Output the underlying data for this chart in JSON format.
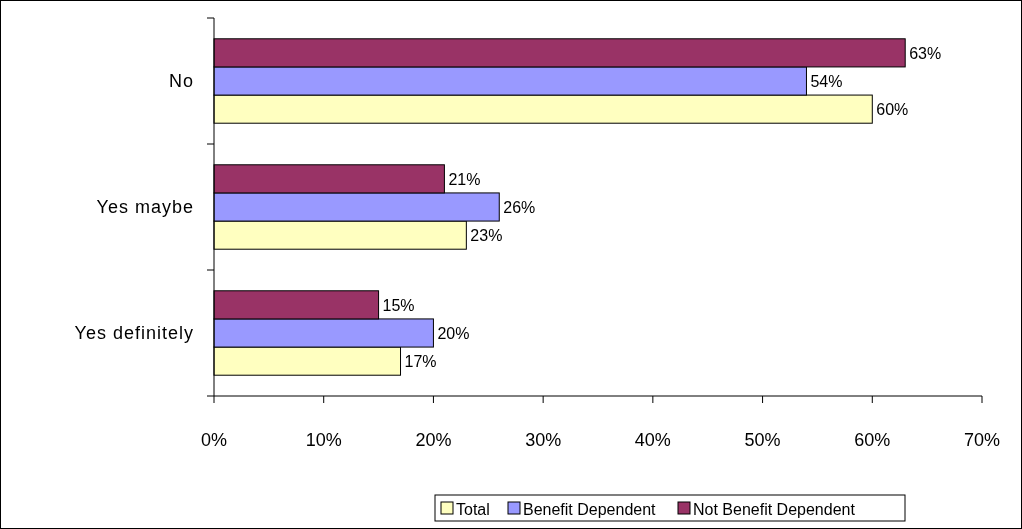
{
  "chart_data": {
    "type": "bar",
    "orientation": "horizontal",
    "categories": [
      "No",
      "Yes maybe",
      "Yes definitely"
    ],
    "series": [
      {
        "name": "Total",
        "color": "#ffffc0",
        "values": [
          60,
          23,
          17
        ],
        "value_labels": [
          "60%",
          "23%",
          "17%"
        ]
      },
      {
        "name": "Benefit Dependent",
        "color": "#9999ff",
        "values": [
          54,
          26,
          20
        ],
        "value_labels": [
          "54%",
          "26%",
          "20%"
        ]
      },
      {
        "name": "Not Benefit Dependent",
        "color": "#993366",
        "values": [
          63,
          21,
          15
        ],
        "value_labels": [
          "63%",
          "21%",
          "15%"
        ]
      }
    ],
    "xlim": [
      0,
      70
    ],
    "xticks": [
      {
        "value": 0,
        "label": "0%"
      },
      {
        "value": 10,
        "label": "10%"
      },
      {
        "value": 20,
        "label": "20%"
      },
      {
        "value": 30,
        "label": "30%"
      },
      {
        "value": 40,
        "label": "40%"
      },
      {
        "value": 50,
        "label": "50%"
      },
      {
        "value": 60,
        "label": "60%"
      },
      {
        "value": 70,
        "label": "70%"
      }
    ],
    "legend": "bottom"
  }
}
